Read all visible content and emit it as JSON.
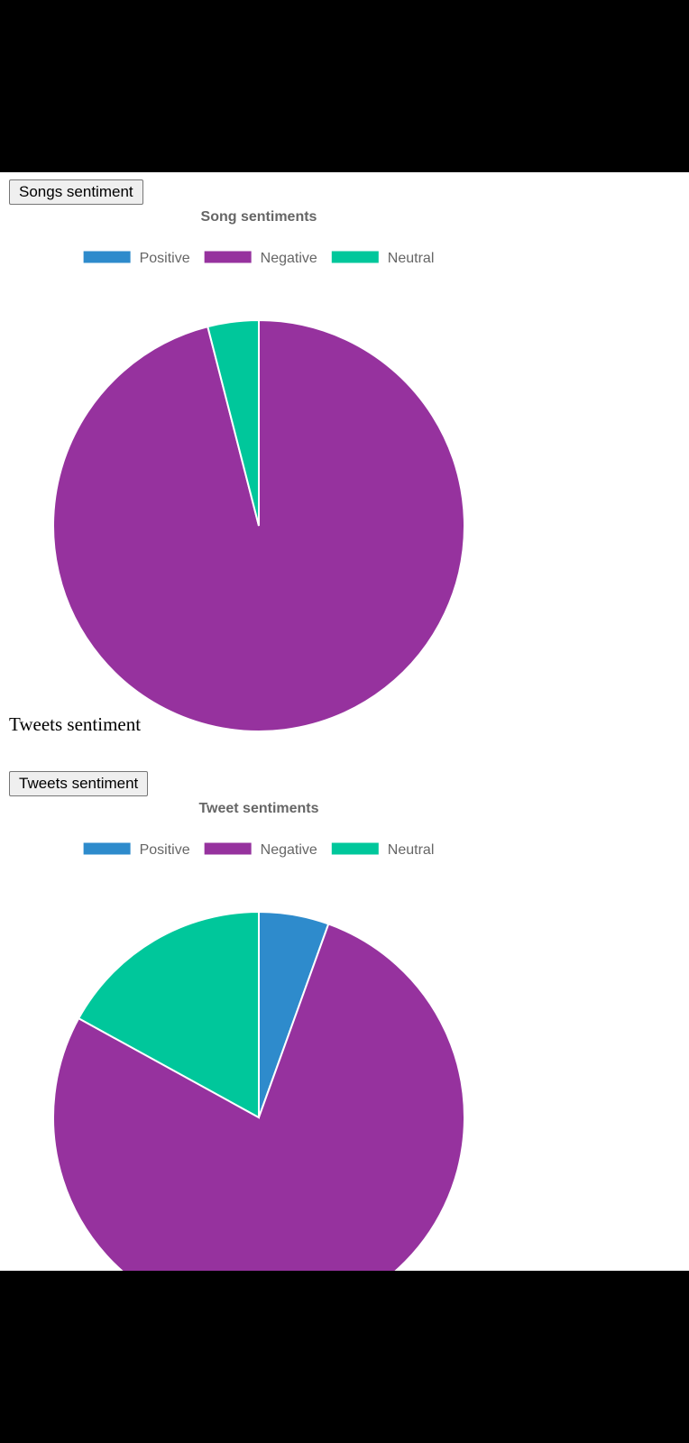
{
  "songs_section": {
    "button_label": "Songs sentiment"
  },
  "tweets_section": {
    "heading": "Tweets sentiment",
    "button_label": "Tweets sentiment"
  },
  "chart_data": [
    {
      "type": "pie",
      "title": "Song sentiments",
      "labels": [
        "Positive",
        "Negative",
        "Neutral"
      ],
      "values": [
        0,
        96,
        4
      ],
      "colors": [
        "#2e8bcc",
        "#96329e",
        "#00c79b"
      ],
      "legend": "top"
    },
    {
      "type": "pie",
      "title": "Tweet sentiments",
      "labels": [
        "Positive",
        "Negative",
        "Neutral"
      ],
      "values": [
        5.5,
        77.5,
        17
      ],
      "colors": [
        "#2e8bcc",
        "#96329e",
        "#00c79b"
      ],
      "legend": "top"
    }
  ]
}
